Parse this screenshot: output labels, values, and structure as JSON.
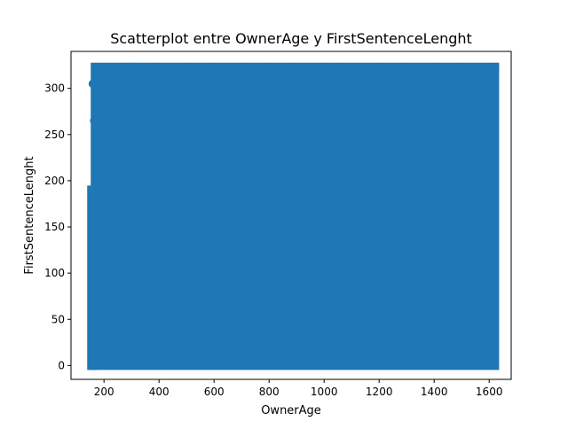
{
  "chart_data": {
    "type": "scatter",
    "title": "Scatterplot entre OwnerAge y FirstSentenceLenght",
    "xlabel": "OwnerAge",
    "ylabel": "FirstSentenceLenght",
    "xlim": [
      80,
      1680
    ],
    "ylim": [
      -15,
      340
    ],
    "x_ticks": [
      200,
      400,
      600,
      800,
      1000,
      1200,
      1400,
      1600
    ],
    "y_ticks": [
      0,
      50,
      100,
      150,
      200,
      250,
      300
    ],
    "x_tick_labels": [
      "200",
      "400",
      "600",
      "800",
      "1000",
      "1200",
      "1400",
      "1600"
    ],
    "y_tick_labels": [
      "0",
      "50",
      "100",
      "150",
      "200",
      "250",
      "300"
    ],
    "grid": false,
    "legend": "none",
    "marker_color": "#1f77b4",
    "series": [
      {
        "values_note_excluded": true,
        "x": [
          160,
          170,
          180,
          165,
          175,
          190,
          200,
          210,
          220,
          230,
          240,
          250,
          260,
          270,
          280,
          300,
          350,
          400,
          450,
          500,
          550,
          600,
          650,
          700,
          750,
          800,
          850,
          900,
          950,
          1000,
          1050,
          1100,
          1150,
          1200,
          1250,
          1300,
          1350,
          1400,
          1450,
          1500,
          1550,
          1600,
          1610,
          1615,
          1620
        ],
        "y": [
          305,
          308,
          300,
          265,
          260,
          255,
          200,
          210,
          215,
          225,
          315,
          320,
          322,
          320,
          322,
          323,
          322,
          322,
          322,
          322,
          322,
          322,
          322,
          322,
          322,
          322,
          322,
          322,
          322,
          322,
          322,
          322,
          322,
          322,
          322,
          322,
          322,
          322,
          322,
          322,
          322,
          322,
          320,
          300,
          322
        ]
      }
    ],
    "dense_region": {
      "x": [
        155,
        1620
      ],
      "y": [
        0,
        323
      ]
    }
  }
}
